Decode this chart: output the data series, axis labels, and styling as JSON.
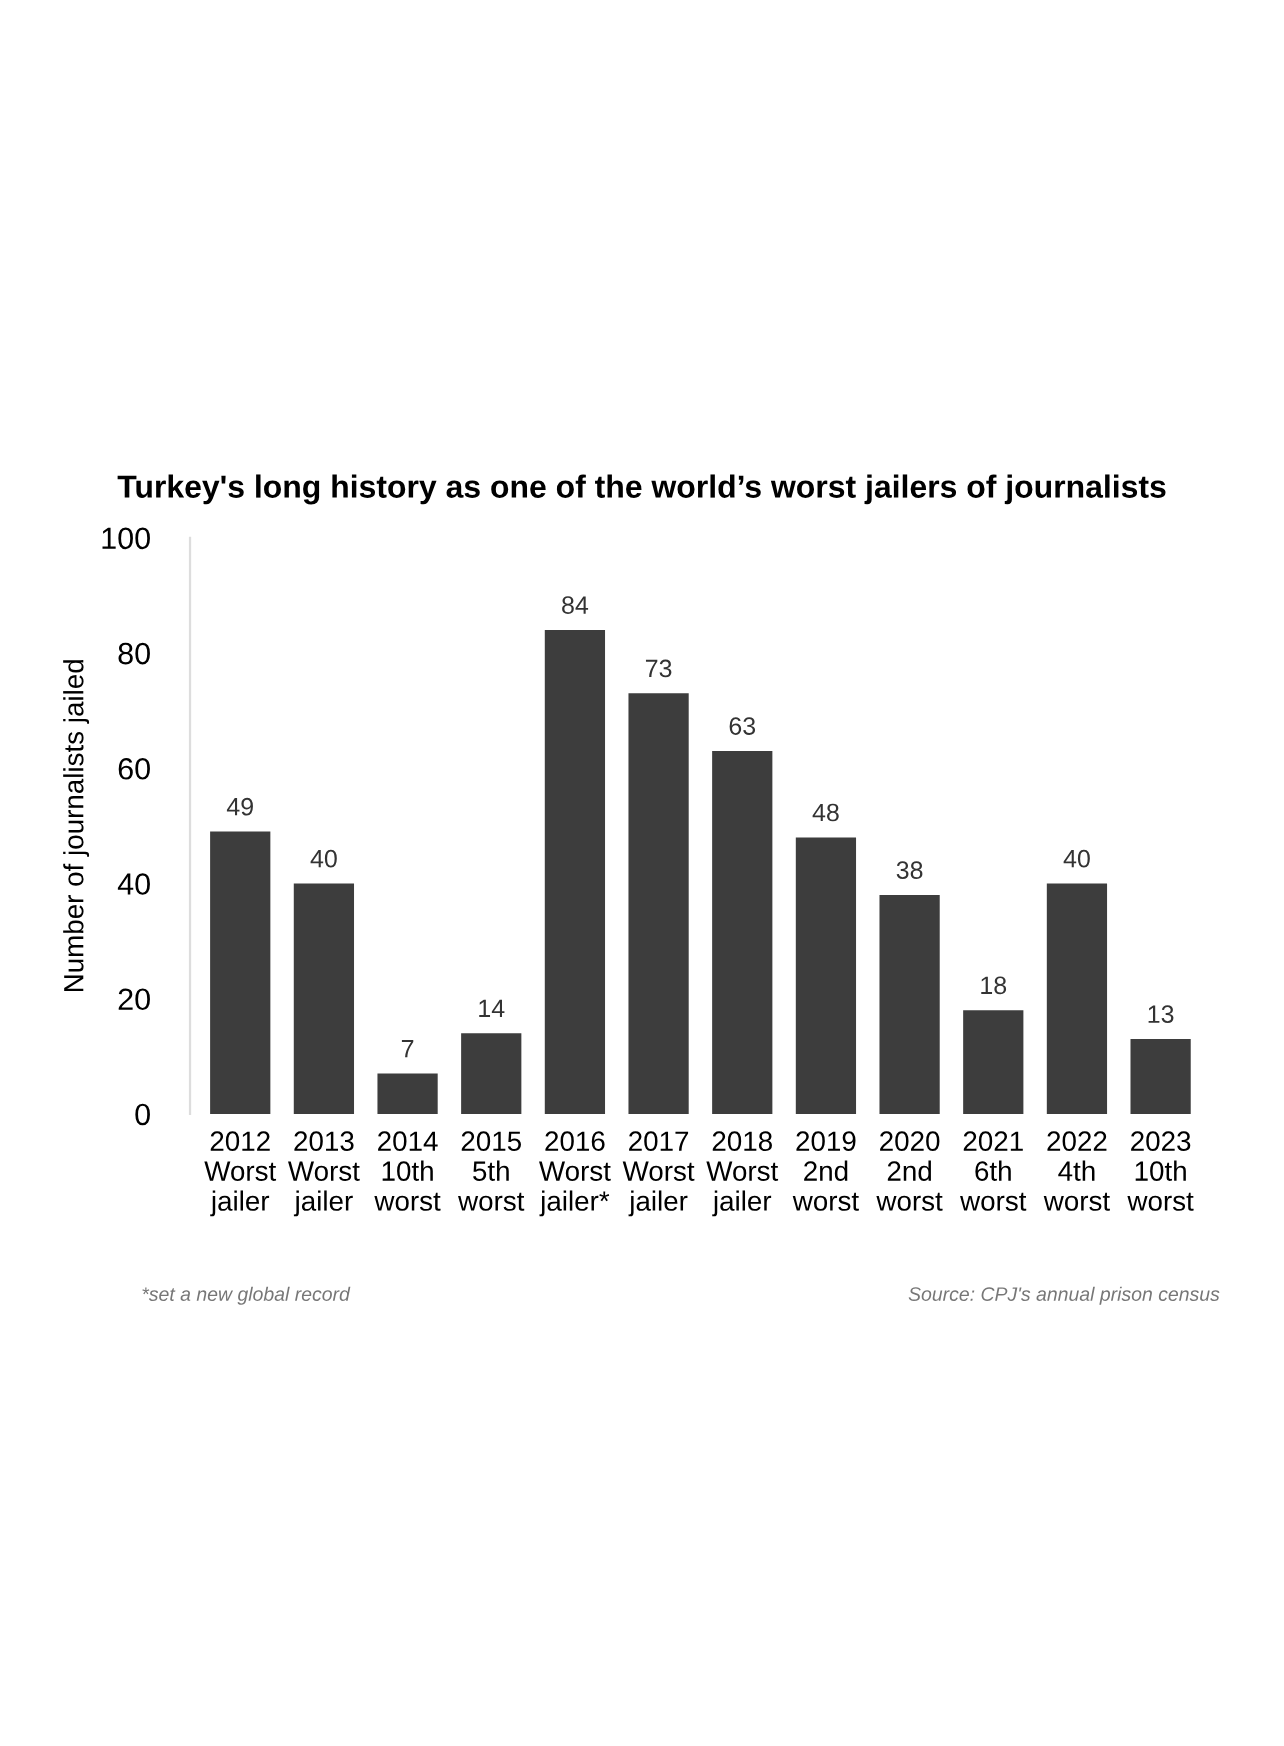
{
  "chart_data": {
    "type": "bar",
    "title": "Turkey's long history as one of the world’s worst jailers of journalists",
    "ylabel": "Number of journalists jailed",
    "categories": [
      "2012\nWorst\njailer",
      "2013\nWorst\njailer",
      "2014\n10th\nworst",
      "2015\n5th\nworst",
      "2016\nWorst\njailer*",
      "2017\nWorst\njailer",
      "2018\nWorst\njailer",
      "2019\n2nd\nworst",
      "2020\n2nd\nworst",
      "2021\n6th\nworst",
      "2022\n4th\nworst",
      "2023\n10th\nworst"
    ],
    "values": [
      49,
      40,
      7,
      14,
      84,
      73,
      63,
      48,
      38,
      18,
      40,
      13
    ],
    "color": "#3d3d3d",
    "ylim": [
      0,
      100
    ],
    "yticks": [
      0,
      20,
      40,
      60,
      80,
      100
    ],
    "data_labels": true,
    "grid": false,
    "annotations": [
      "*set a new global record",
      "Source: CPJ's annual prison census"
    ]
  }
}
